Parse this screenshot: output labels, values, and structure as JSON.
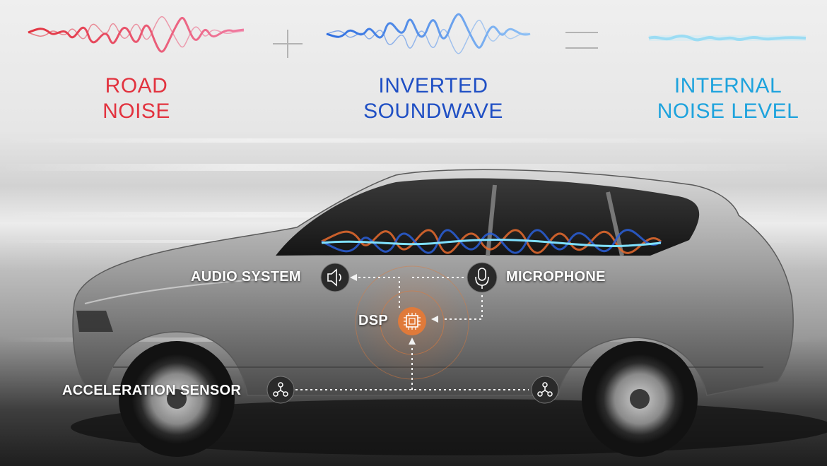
{
  "equation": {
    "term1": {
      "line1": "ROAD",
      "line2": "NOISE",
      "color": "#e2333f"
    },
    "term2": {
      "line1": "INVERTED",
      "line2": "SOUNDWAVE",
      "color": "#1f4fc4"
    },
    "term3": {
      "line1": "INTERNAL",
      "line2": "NOISE LEVEL",
      "color": "#1ea3dd"
    }
  },
  "components": {
    "audio_system": "AUDIO SYSTEM",
    "microphone": "MICROPHONE",
    "dsp": "DSP",
    "acceleration_sensor": "ACCELERATION SENSOR"
  },
  "colors": {
    "dsp_accent": "#e07a3a",
    "hud_circle": "#2a2a2a"
  }
}
